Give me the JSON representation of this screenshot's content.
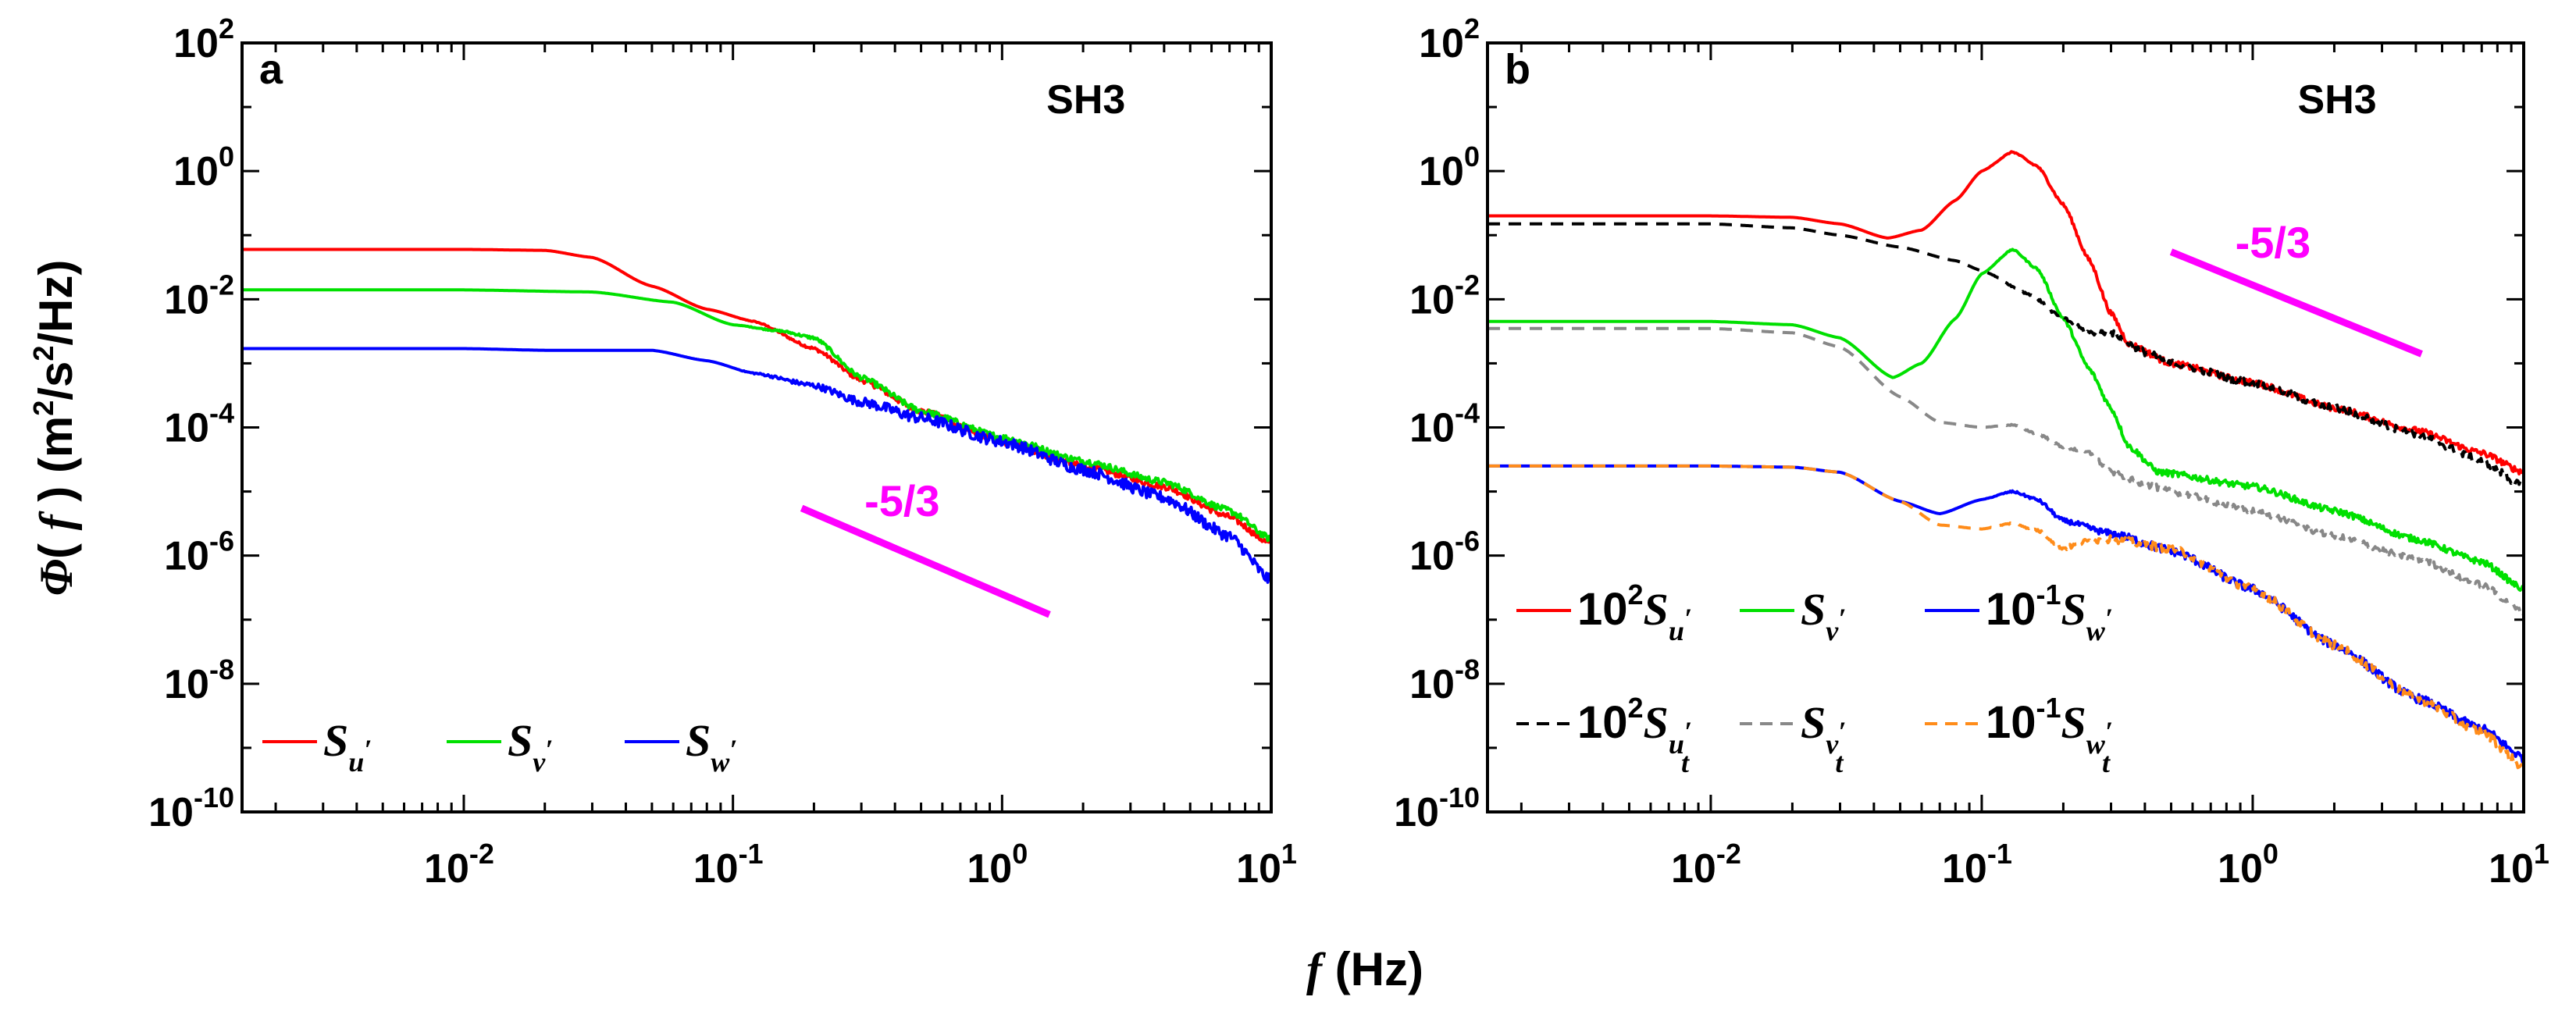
{
  "chart_data": [
    {
      "panel": "a",
      "type": "line",
      "scale": "log-log",
      "site": "SH3",
      "xlim": [
        0.0015,
        10
      ],
      "ylim": [
        1e-10,
        100
      ],
      "xticks": [
        {
          "value": 0.01,
          "base": "10",
          "exp": "-2"
        },
        {
          "value": 0.1,
          "base": "10",
          "exp": "-1"
        },
        {
          "value": 1,
          "base": "10",
          "exp": "0"
        },
        {
          "value": 10,
          "base": "10",
          "exp": "1"
        }
      ],
      "yticks": [
        {
          "value": 100,
          "base": "10",
          "exp": "2"
        },
        {
          "value": 1,
          "base": "10",
          "exp": "0"
        },
        {
          "value": 0.01,
          "base": "10",
          "exp": "-2"
        },
        {
          "value": 0.0001,
          "base": "10",
          "exp": "-4"
        },
        {
          "value": 1e-06,
          "base": "10",
          "exp": "-6"
        },
        {
          "value": 1e-08,
          "base": "10",
          "exp": "-8"
        },
        {
          "value": 1e-10,
          "base": "10",
          "exp": "-10"
        }
      ],
      "slope": {
        "label": "-5/3",
        "x": [
          0.18,
          1.5
        ],
        "y": [
          5.5e-06,
          1.2e-07
        ],
        "color": "#ff00ff"
      },
      "series": [
        {
          "name": "S_u'",
          "color": "#ff0000",
          "dash": "none",
          "noise": 0.05,
          "x": [
            0.0015,
            0.01,
            0.02,
            0.03,
            0.05,
            0.08,
            0.12,
            0.2,
            0.3,
            0.5,
            1,
            2,
            4,
            7,
            10
          ],
          "y": [
            0.06,
            0.06,
            0.058,
            0.045,
            0.016,
            0.007,
            0.0045,
            0.0017,
            0.00055,
            0.00018,
            6e-05,
            2.5e-05,
            1.2e-05,
            4e-06,
            1.5e-06
          ]
        },
        {
          "name": "S_v'",
          "color": "#00e000",
          "dash": "none",
          "noise": 0.05,
          "x": [
            0.0015,
            0.01,
            0.03,
            0.06,
            0.1,
            0.15,
            0.2,
            0.3,
            0.5,
            1,
            2,
            4,
            7,
            10
          ],
          "y": [
            0.014,
            0.014,
            0.013,
            0.009,
            0.004,
            0.0032,
            0.0025,
            0.0006,
            0.00018,
            7e-05,
            3e-05,
            1.4e-05,
            5e-06,
            1.8e-06
          ]
        },
        {
          "name": "S_w'",
          "color": "#0000ff",
          "dash": "none",
          "noise": 0.09,
          "x": [
            0.0015,
            0.01,
            0.02,
            0.05,
            0.08,
            0.12,
            0.2,
            0.3,
            0.5,
            1,
            2,
            4,
            7,
            10
          ],
          "y": [
            0.0017,
            0.0017,
            0.0016,
            0.0016,
            0.0011,
            0.0007,
            0.00045,
            0.00025,
            0.00014,
            6e-05,
            2.2e-05,
            8e-06,
            2e-06,
            4e-07
          ]
        }
      ],
      "legend": [
        {
          "series": 0,
          "base": "S",
          "sub": "u",
          "subsub": "",
          "prefix": "",
          "prefix_exp": ""
        },
        {
          "series": 1,
          "base": "S",
          "sub": "v",
          "subsub": "",
          "prefix": "",
          "prefix_exp": ""
        },
        {
          "series": 2,
          "base": "S",
          "sub": "w",
          "subsub": "",
          "prefix": "",
          "prefix_exp": ""
        }
      ]
    },
    {
      "panel": "b",
      "type": "line",
      "scale": "log-log",
      "site": "SH3",
      "xlim": [
        0.0015,
        10
      ],
      "ylim": [
        1e-10,
        100
      ],
      "xticks": [
        {
          "value": 0.01,
          "base": "10",
          "exp": "-2"
        },
        {
          "value": 0.1,
          "base": "10",
          "exp": "-1"
        },
        {
          "value": 1,
          "base": "10",
          "exp": "0"
        },
        {
          "value": 10,
          "base": "10",
          "exp": "1"
        }
      ],
      "yticks": [
        {
          "value": 100,
          "base": "10",
          "exp": "2"
        },
        {
          "value": 1,
          "base": "10",
          "exp": "0"
        },
        {
          "value": 0.01,
          "base": "10",
          "exp": "-2"
        },
        {
          "value": 0.0001,
          "base": "10",
          "exp": "-4"
        },
        {
          "value": 1e-06,
          "base": "10",
          "exp": "-6"
        },
        {
          "value": 1e-08,
          "base": "10",
          "exp": "-8"
        },
        {
          "value": 1e-10,
          "base": "10",
          "exp": "-10"
        }
      ],
      "slope": {
        "label": "-5/3",
        "x": [
          0.5,
          4.2
        ],
        "y": [
          0.055,
          0.0014
        ],
        "color": "#ff00ff"
      },
      "series": [
        {
          "name": "10^2 S_u'",
          "color": "#ff0000",
          "dash": "none",
          "noise": 0.05,
          "x": [
            0.0015,
            0.01,
            0.02,
            0.03,
            0.045,
            0.06,
            0.08,
            0.1,
            0.13,
            0.16,
            0.2,
            0.25,
            0.3,
            0.35,
            0.5,
            1,
            2,
            4,
            7,
            10
          ],
          "y": [
            0.2,
            0.2,
            0.19,
            0.15,
            0.09,
            0.12,
            0.35,
            1,
            2,
            1.2,
            0.3,
            0.04,
            0.006,
            0.002,
            0.001,
            0.0005,
            0.0002,
            9e-05,
            4e-05,
            2e-05
          ]
        },
        {
          "name": "S_v'",
          "color": "#00e000",
          "dash": "none",
          "noise": 0.05,
          "x": [
            0.0015,
            0.01,
            0.02,
            0.03,
            0.047,
            0.06,
            0.08,
            0.1,
            0.13,
            0.16,
            0.2,
            0.25,
            0.3,
            0.35,
            0.45,
            1,
            2,
            4,
            7,
            10
          ],
          "y": [
            0.0045,
            0.0045,
            0.004,
            0.0025,
            0.0006,
            0.001,
            0.005,
            0.025,
            0.06,
            0.03,
            0.005,
            0.0008,
            0.0002,
            5e-05,
            2e-05,
            1.2e-05,
            5e-06,
            1.8e-06,
            8e-07,
            3e-07
          ]
        },
        {
          "name": "10^-1 S_w'",
          "color": "#0000ff",
          "dash": "none",
          "noise": 0.07,
          "x": [
            0.0015,
            0.01,
            0.02,
            0.03,
            0.05,
            0.07,
            0.1,
            0.13,
            0.16,
            0.2,
            0.3,
            0.5,
            1,
            2,
            4,
            7,
            10
          ],
          "y": [
            2.5e-05,
            2.5e-05,
            2.4e-05,
            2e-05,
            7e-06,
            4.5e-06,
            7.5e-06,
            1e-05,
            7.5e-06,
            3.5e-06,
            2.2e-06,
            1.2e-06,
            3e-07,
            4e-08,
            6e-09,
            2e-09,
            7e-10
          ]
        },
        {
          "name": "10^2 S_u'_t",
          "color": "#000000",
          "dash": "16,11",
          "noise": 0.06,
          "x": [
            0.0015,
            0.01,
            0.02,
            0.03,
            0.05,
            0.08,
            0.1,
            0.15,
            0.2,
            0.25,
            0.3,
            0.4,
            0.5,
            1,
            2,
            4,
            7,
            10
          ],
          "y": [
            0.15,
            0.15,
            0.13,
            0.1,
            0.065,
            0.04,
            0.028,
            0.012,
            0.005,
            0.003,
            0.003,
            0.0015,
            0.001,
            0.0005,
            0.0002,
            8e-05,
            3e-05,
            1.2e-05
          ]
        },
        {
          "name": "S_v'_t",
          "color": "#888888",
          "dash": "16,11",
          "noise": 0.05,
          "x": [
            0.0015,
            0.01,
            0.02,
            0.03,
            0.05,
            0.07,
            0.1,
            0.13,
            0.16,
            0.2,
            0.25,
            0.3,
            0.4,
            0.5,
            1,
            2,
            4,
            7,
            10
          ],
          "y": [
            0.0035,
            0.0035,
            0.003,
            0.0018,
            0.0003,
            0.00012,
            0.0001,
            0.00011,
            8e-05,
            5e-05,
            4e-05,
            2e-05,
            1.3e-05,
            1e-05,
            5e-06,
            2e-06,
            9e-07,
            3.5e-07,
            1.3e-07
          ]
        },
        {
          "name": "10^-1 S_w'_t",
          "color": "#ff8c1a",
          "dash": "16,11",
          "noise": 0.07,
          "x": [
            0.0015,
            0.01,
            0.02,
            0.03,
            0.05,
            0.07,
            0.1,
            0.13,
            0.16,
            0.2,
            0.25,
            0.3,
            0.5,
            1,
            2,
            4,
            7,
            10
          ],
          "y": [
            2.5e-05,
            2.5e-05,
            2.4e-05,
            2e-05,
            7e-06,
            3e-06,
            2.6e-06,
            3.2e-06,
            2.5e-06,
            1.3e-06,
            1.7e-06,
            1.8e-06,
            1.3e-06,
            3e-07,
            4e-08,
            6e-09,
            1.8e-09,
            5e-10
          ]
        }
      ],
      "legend": [
        {
          "series": 0,
          "base": "S",
          "sub": "u",
          "subsub": "",
          "prefix": "10",
          "prefix_exp": "2"
        },
        {
          "series": 1,
          "base": "S",
          "sub": "v",
          "subsub": "",
          "prefix": "",
          "prefix_exp": ""
        },
        {
          "series": 2,
          "base": "S",
          "sub": "w",
          "subsub": "",
          "prefix": "10",
          "prefix_exp": "-1"
        },
        {
          "series": 3,
          "base": "S",
          "sub": "u",
          "subsub": "t",
          "prefix": "10",
          "prefix_exp": "2"
        },
        {
          "series": 4,
          "base": "S",
          "sub": "v",
          "subsub": "t",
          "prefix": "",
          "prefix_exp": ""
        },
        {
          "series": 5,
          "base": "S",
          "sub": "w",
          "subsub": "t",
          "prefix": "10",
          "prefix_exp": "-1"
        }
      ]
    }
  ],
  "ylabel": {
    "phi": "Φ",
    "open": "( ",
    "f": "f",
    "close": " ) (m",
    "exp1": "2",
    "mid": "/s",
    "exp2": "2",
    "end": "/Hz)"
  },
  "xlabel": {
    "f": "f",
    "rest": " (Hz)"
  }
}
